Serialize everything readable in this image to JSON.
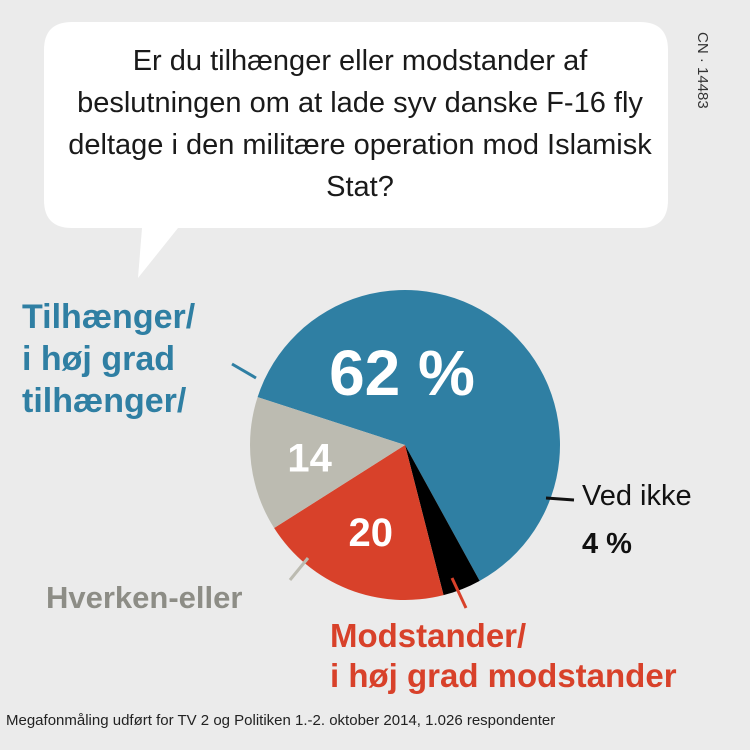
{
  "chart_data": {
    "type": "pie",
    "title": "Er du tilhænger eller modstander af beslutningen om at lade syv danske F-16 fly deltage i den militære operation mod Islamisk Stat?",
    "slices": [
      {
        "label_lines": [
          "Tilhænger/",
          "i høj grad",
          "tilhænger/"
        ],
        "value": 62,
        "value_label": "62 %",
        "color": "#2f7fa3"
      },
      {
        "label_lines": [
          "Ved ikke"
        ],
        "value": 4,
        "value_label": "4 %",
        "color": "#000000"
      },
      {
        "label_lines": [
          "Modstander/",
          "i høj grad modstander"
        ],
        "value": 20,
        "value_label": "20",
        "color": "#d8412a"
      },
      {
        "label_lines": [
          "Hverken-eller"
        ],
        "value": 14,
        "value_label": "14",
        "color": "#bcbbb1"
      }
    ],
    "legend": "none"
  },
  "code": "CN · 14483",
  "footer": "Megafonmåling udført for TV 2 og Politiken 1.-2. oktober 2014, 1.026 respondenter"
}
